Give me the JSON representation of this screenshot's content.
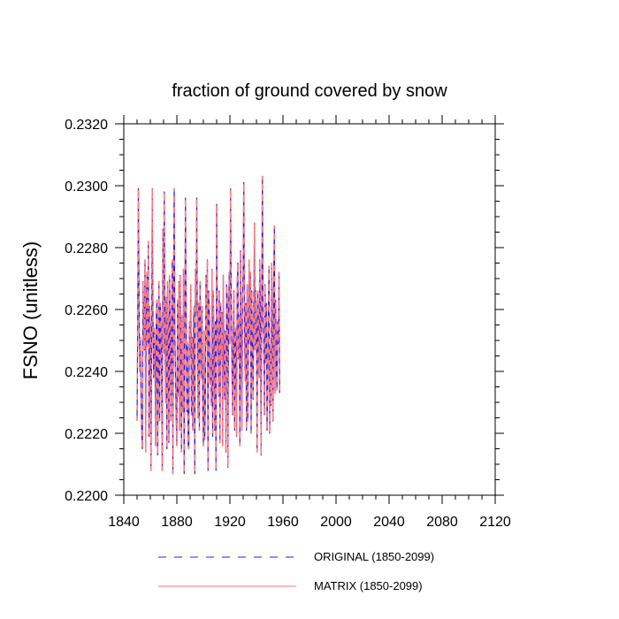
{
  "chart_data": {
    "type": "line",
    "title": "fraction of ground covered by snow",
    "xlabel": "",
    "ylabel": "FSNO  (unitless)",
    "xlim": [
      1840,
      2120
    ],
    "ylim": [
      0.22,
      0.232
    ],
    "x_ticks": [
      "1840",
      "1880",
      "1920",
      "1960",
      "2000",
      "2040",
      "2080",
      "2120"
    ],
    "y_ticks": [
      "0.2200",
      "0.2220",
      "0.2240",
      "0.2260",
      "0.2280",
      "0.2300",
      "0.2320"
    ],
    "legend_position": "bottom",
    "x_start": 1850,
    "x_step": 0.5,
    "series": [
      {
        "name": "ORIGINAL (1850-2099)",
        "color": "#2a1ee0",
        "dash": "dashed",
        "values": [
          0.2224,
          0.2256,
          0.2299,
          0.2262,
          0.224,
          0.2251,
          0.2232,
          0.2221,
          0.2215,
          0.2269,
          0.2258,
          0.2247,
          0.2276,
          0.2214,
          0.2263,
          0.2272,
          0.2248,
          0.2282,
          0.2219,
          0.2261,
          0.2254,
          0.2208,
          0.2249,
          0.2299,
          0.2256,
          0.2238,
          0.2254,
          0.2246,
          0.2216,
          0.2258,
          0.2263,
          0.2213,
          0.2241,
          0.2269,
          0.2224,
          0.2262,
          0.2256,
          0.2238,
          0.2208,
          0.2286,
          0.2246,
          0.2298,
          0.2252,
          0.223,
          0.2264,
          0.2215,
          0.2269,
          0.2249,
          0.2217,
          0.2271,
          0.2257,
          0.2224,
          0.2249,
          0.2276,
          0.2207,
          0.2266,
          0.2299,
          0.2251,
          0.2239,
          0.2224,
          0.2216,
          0.2263,
          0.2232,
          0.2269,
          0.2221,
          0.2271,
          0.2247,
          0.2214,
          0.2258,
          0.2227,
          0.2273,
          0.2207,
          0.2251,
          0.2296,
          0.2259,
          0.2227,
          0.2249,
          0.2216,
          0.2215,
          0.2256,
          0.2245,
          0.2268,
          0.2226,
          0.2251,
          0.2221,
          0.2257,
          0.2261,
          0.2207,
          0.2273,
          0.2259,
          0.2296,
          0.2247,
          0.2225,
          0.2262,
          0.2221,
          0.2269,
          0.225,
          0.2238,
          0.2261,
          0.2228,
          0.2216,
          0.2253,
          0.2218,
          0.2229,
          0.2271,
          0.2249,
          0.2276,
          0.2208,
          0.2266,
          0.2258,
          0.2236,
          0.2244,
          0.2229,
          0.2273,
          0.2219,
          0.2266,
          0.2249,
          0.2221,
          0.2256,
          0.2208,
          0.2294,
          0.2259,
          0.2245,
          0.2232,
          0.2266,
          0.2217,
          0.2262,
          0.2244,
          0.2259,
          0.2216,
          0.2271,
          0.2247,
          0.2231,
          0.2253,
          0.2214,
          0.2268,
          0.2264,
          0.2209,
          0.2257,
          0.2272,
          0.2249,
          0.2299,
          0.2262,
          0.2243,
          0.2226,
          0.2251,
          0.2266,
          0.2221,
          0.2254,
          0.2247,
          0.2219,
          0.2269,
          0.2275,
          0.2244,
          0.2258,
          0.2216,
          0.2279,
          0.2248,
          0.2221,
          0.2264,
          0.2273,
          0.2301,
          0.2252,
          0.2237,
          0.2262,
          0.2221,
          0.2268,
          0.2224,
          0.2254,
          0.2276,
          0.2249,
          0.2272,
          0.222,
          0.2266,
          0.2246,
          0.2231,
          0.2259,
          0.2288,
          0.2247,
          0.2266,
          0.2255,
          0.2214,
          0.2266,
          0.2252,
          0.2238,
          0.2276,
          0.2261,
          0.2213,
          0.2263,
          0.2303,
          0.2256,
          0.2251,
          0.2226,
          0.2268,
          0.2243,
          0.2262,
          0.2221,
          0.2233,
          0.2259,
          0.2274,
          0.222,
          0.2248,
          0.2229,
          0.2275,
          0.2255,
          0.2224,
          0.2268,
          0.2287,
          0.2233,
          0.2263,
          0.2241,
          0.2234,
          0.2256,
          0.2249,
          0.2272,
          0.2233
        ]
      },
      {
        "name": "MATRIX (1850-2099)",
        "color": "#ff7a7a",
        "dash": "solid"
      }
    ]
  }
}
